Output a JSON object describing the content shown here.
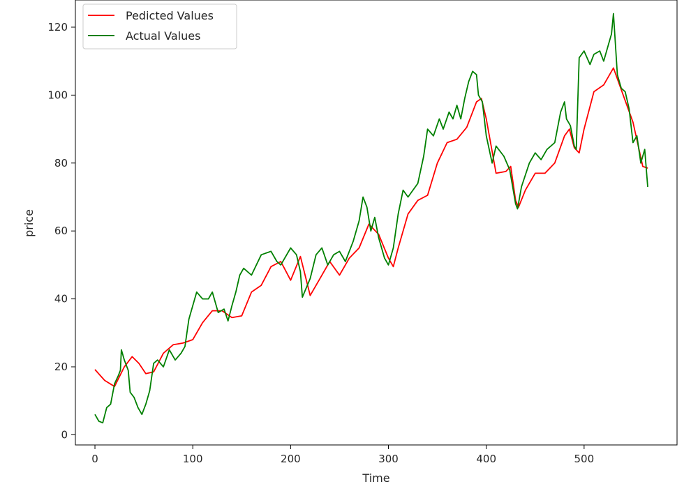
{
  "chart_data": {
    "type": "line",
    "title": "",
    "xlabel": "Time",
    "ylabel": "price",
    "xlim": [
      -20,
      595
    ],
    "ylim": [
      -3,
      128
    ],
    "xticks": [
      0,
      100,
      200,
      300,
      400,
      500
    ],
    "yticks": [
      0,
      20,
      40,
      60,
      80,
      100,
      120
    ],
    "grid": false,
    "legend": "top-left",
    "series": [
      {
        "name": "Pedicted Values",
        "color": "#ff0000",
        "points": [
          [
            0,
            19.2
          ],
          [
            10,
            16
          ],
          [
            20,
            14.2
          ],
          [
            30,
            20
          ],
          [
            38,
            23
          ],
          [
            45,
            21
          ],
          [
            52,
            18
          ],
          [
            60,
            18.5
          ],
          [
            70,
            24
          ],
          [
            80,
            26.5
          ],
          [
            90,
            27
          ],
          [
            100,
            28
          ],
          [
            110,
            33
          ],
          [
            120,
            36.5
          ],
          [
            130,
            36.5
          ],
          [
            140,
            34.5
          ],
          [
            150,
            35
          ],
          [
            160,
            42
          ],
          [
            170,
            44
          ],
          [
            180,
            49.5
          ],
          [
            190,
            51
          ],
          [
            200,
            45.5
          ],
          [
            210,
            52.5
          ],
          [
            220,
            41
          ],
          [
            230,
            46
          ],
          [
            240,
            51
          ],
          [
            250,
            47
          ],
          [
            260,
            52
          ],
          [
            270,
            55
          ],
          [
            280,
            62
          ],
          [
            290,
            59
          ],
          [
            300,
            52
          ],
          [
            305,
            49.5
          ],
          [
            310,
            55
          ],
          [
            320,
            65
          ],
          [
            330,
            69
          ],
          [
            340,
            70.5
          ],
          [
            350,
            80
          ],
          [
            360,
            86
          ],
          [
            370,
            87
          ],
          [
            380,
            90.5
          ],
          [
            390,
            98
          ],
          [
            395,
            99
          ],
          [
            400,
            93
          ],
          [
            410,
            77
          ],
          [
            420,
            77.5
          ],
          [
            425,
            79
          ],
          [
            430,
            69
          ],
          [
            433,
            67
          ],
          [
            440,
            72
          ],
          [
            450,
            77
          ],
          [
            460,
            77
          ],
          [
            470,
            80
          ],
          [
            480,
            88
          ],
          [
            485,
            90
          ],
          [
            490,
            84.5
          ],
          [
            495,
            83
          ],
          [
            500,
            90
          ],
          [
            510,
            101
          ],
          [
            520,
            103
          ],
          [
            530,
            108
          ],
          [
            540,
            100
          ],
          [
            550,
            92
          ],
          [
            560,
            79
          ],
          [
            565,
            78.5
          ]
        ]
      },
      {
        "name": "Actual Values",
        "color": "#008000",
        "points": [
          [
            0,
            6
          ],
          [
            4,
            4
          ],
          [
            8,
            3.5
          ],
          [
            12,
            8
          ],
          [
            16,
            9
          ],
          [
            20,
            15
          ],
          [
            24,
            17.5
          ],
          [
            26,
            19
          ],
          [
            27,
            25
          ],
          [
            30,
            22
          ],
          [
            34,
            19
          ],
          [
            36,
            12.5
          ],
          [
            40,
            11
          ],
          [
            44,
            8
          ],
          [
            48,
            6
          ],
          [
            52,
            9
          ],
          [
            56,
            13
          ],
          [
            60,
            21
          ],
          [
            64,
            22
          ],
          [
            70,
            20
          ],
          [
            76,
            25
          ],
          [
            82,
            22
          ],
          [
            88,
            24
          ],
          [
            92,
            26
          ],
          [
            96,
            34
          ],
          [
            100,
            38
          ],
          [
            104,
            42
          ],
          [
            110,
            40
          ],
          [
            116,
            40
          ],
          [
            120,
            42
          ],
          [
            126,
            36
          ],
          [
            132,
            37
          ],
          [
            136,
            33.5
          ],
          [
            140,
            38
          ],
          [
            144,
            42
          ],
          [
            148,
            47
          ],
          [
            152,
            49
          ],
          [
            160,
            47
          ],
          [
            170,
            53
          ],
          [
            180,
            54
          ],
          [
            186,
            51
          ],
          [
            190,
            50
          ],
          [
            200,
            55
          ],
          [
            206,
            53
          ],
          [
            210,
            48
          ],
          [
            212,
            40.5
          ],
          [
            220,
            46
          ],
          [
            226,
            53
          ],
          [
            232,
            55
          ],
          [
            238,
            50
          ],
          [
            244,
            53
          ],
          [
            250,
            54
          ],
          [
            256,
            51
          ],
          [
            264,
            57
          ],
          [
            270,
            63
          ],
          [
            274,
            70
          ],
          [
            278,
            67
          ],
          [
            282,
            60
          ],
          [
            286,
            64
          ],
          [
            290,
            58
          ],
          [
            294,
            54
          ],
          [
            296,
            52
          ],
          [
            300,
            50
          ],
          [
            305,
            55
          ],
          [
            310,
            65
          ],
          [
            315,
            72
          ],
          [
            320,
            70
          ],
          [
            330,
            74
          ],
          [
            336,
            82
          ],
          [
            340,
            90
          ],
          [
            346,
            88
          ],
          [
            352,
            93
          ],
          [
            356,
            90
          ],
          [
            362,
            95
          ],
          [
            366,
            93
          ],
          [
            370,
            97
          ],
          [
            374,
            93
          ],
          [
            378,
            99
          ],
          [
            382,
            104
          ],
          [
            386,
            107
          ],
          [
            390,
            106
          ],
          [
            392,
            100
          ],
          [
            396,
            98
          ],
          [
            400,
            88
          ],
          [
            406,
            80
          ],
          [
            410,
            85
          ],
          [
            418,
            82
          ],
          [
            424,
            78
          ],
          [
            430,
            68
          ],
          [
            432,
            66.5
          ],
          [
            436,
            73
          ],
          [
            444,
            80
          ],
          [
            450,
            83
          ],
          [
            456,
            81
          ],
          [
            462,
            84
          ],
          [
            470,
            86
          ],
          [
            476,
            95
          ],
          [
            480,
            98
          ],
          [
            482,
            93
          ],
          [
            484,
            92
          ],
          [
            486,
            91
          ],
          [
            490,
            85
          ],
          [
            492,
            84
          ],
          [
            495,
            111
          ],
          [
            500,
            113
          ],
          [
            506,
            109
          ],
          [
            510,
            112
          ],
          [
            516,
            113
          ],
          [
            520,
            110
          ],
          [
            526,
            116
          ],
          [
            528,
            118
          ],
          [
            530,
            124
          ],
          [
            534,
            106
          ],
          [
            538,
            102
          ],
          [
            542,
            101
          ],
          [
            546,
            96
          ],
          [
            550,
            86
          ],
          [
            554,
            88
          ],
          [
            558,
            80
          ],
          [
            562,
            84
          ],
          [
            565,
            73
          ]
        ]
      }
    ]
  }
}
